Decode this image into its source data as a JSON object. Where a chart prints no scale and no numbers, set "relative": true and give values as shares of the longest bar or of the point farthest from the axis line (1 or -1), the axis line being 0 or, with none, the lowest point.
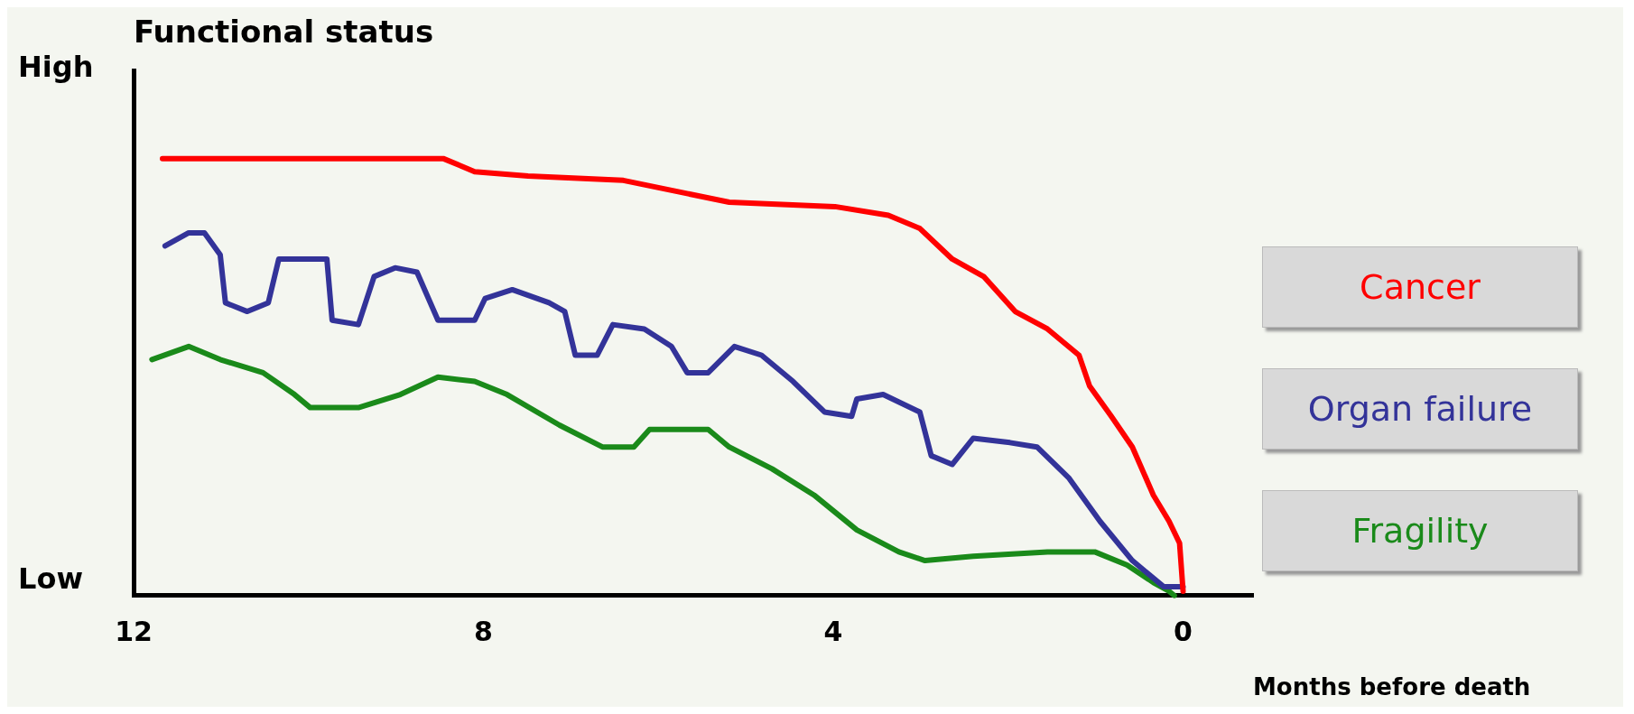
{
  "chart_data": {
    "type": "line",
    "title": "Functional status",
    "xlabel": "Months before death",
    "xlim": [
      12,
      -0.8
    ],
    "xticks": [
      12,
      8,
      4,
      0
    ],
    "relative": true,
    "annotations": [
      "High",
      "Low"
    ],
    "grid": false,
    "legend": "right",
    "marker": "none",
    "line_style": "solid",
    "series": [
      {
        "name": "Cancer",
        "color": "#ff0000",
        "x": [
          11.67,
          8.46,
          8.1,
          7.49,
          6.4,
          5.19,
          3.98,
          3.37,
          3.01,
          2.64,
          2.28,
          1.92,
          1.55,
          1.19,
          1.07,
          0.82,
          0.58,
          0.34,
          0.16,
          0.04,
          0
        ],
        "values": [
          1,
          1,
          0.97,
          0.96,
          0.95,
          0.9,
          0.89,
          0.87,
          0.84,
          0.77,
          0.73,
          0.65,
          0.61,
          0.55,
          0.48,
          0.41,
          0.34,
          0.23,
          0.17,
          0.12,
          0.01
        ]
      },
      {
        "name": "Organ failure",
        "color": "#333399",
        "x": [
          11.64,
          11.37,
          11.19,
          11.01,
          10.95,
          10.7,
          10.46,
          10.34,
          9.79,
          9.73,
          9.43,
          9.25,
          9.01,
          8.76,
          8.52,
          8.1,
          7.98,
          7.67,
          7.25,
          7.07,
          6.95,
          6.7,
          6.52,
          6.16,
          5.85,
          5.67,
          5.43,
          5.13,
          4.82,
          4.46,
          4.1,
          3.79,
          3.73,
          3.43,
          3.01,
          2.88,
          2.64,
          2.4,
          1.98,
          1.67,
          1.31,
          0.95,
          0.58,
          0.22,
          0
        ],
        "values": [
          0.8,
          0.83,
          0.83,
          0.78,
          0.67,
          0.65,
          0.67,
          0.77,
          0.77,
          0.63,
          0.62,
          0.73,
          0.75,
          0.74,
          0.63,
          0.63,
          0.68,
          0.7,
          0.67,
          0.65,
          0.55,
          0.55,
          0.62,
          0.61,
          0.57,
          0.51,
          0.51,
          0.57,
          0.55,
          0.49,
          0.42,
          0.41,
          0.45,
          0.46,
          0.42,
          0.32,
          0.3,
          0.36,
          0.35,
          0.34,
          0.27,
          0.17,
          0.08,
          0.02,
          0.02
        ]
      },
      {
        "name": "Fragility",
        "color": "#1a8a1a",
        "x": [
          11.79,
          11.37,
          11.01,
          10.52,
          10.16,
          9.98,
          9.43,
          8.95,
          8.52,
          8.1,
          7.73,
          7.13,
          6.64,
          6.28,
          6.1,
          5.43,
          5.19,
          4.7,
          4.22,
          3.73,
          3.25,
          2.95,
          2.4,
          1.55,
          1.01,
          0.64,
          0.34,
          0.16,
          0.1
        ],
        "values": [
          0.54,
          0.57,
          0.54,
          0.51,
          0.46,
          0.43,
          0.43,
          0.46,
          0.5,
          0.49,
          0.46,
          0.39,
          0.34,
          0.34,
          0.38,
          0.38,
          0.34,
          0.29,
          0.23,
          0.15,
          0.1,
          0.08,
          0.09,
          0.1,
          0.1,
          0.07,
          0.03,
          0.01,
          0
        ]
      }
    ]
  }
}
